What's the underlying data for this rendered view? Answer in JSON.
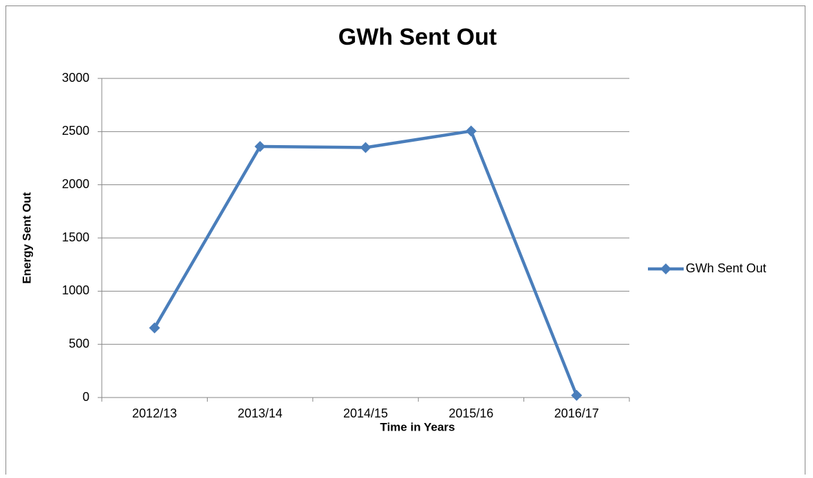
{
  "chart_data": {
    "type": "line",
    "title": "GWh Sent Out",
    "x_label": "Time in Years",
    "y_label": "Energy Sent Out",
    "categories": [
      "2012/13",
      "2013/14",
      "2014/15",
      "2015/16",
      "2016/17"
    ],
    "series": [
      {
        "name": "GWh Sent Out",
        "color": "#4a7ebb",
        "values": [
          655,
          2360,
          2350,
          2505,
          20
        ]
      }
    ],
    "ylim": [
      0,
      3000
    ],
    "yticks": [
      0,
      500,
      1000,
      1500,
      2000,
      2500,
      3000
    ],
    "grid": true,
    "legend": "right"
  }
}
